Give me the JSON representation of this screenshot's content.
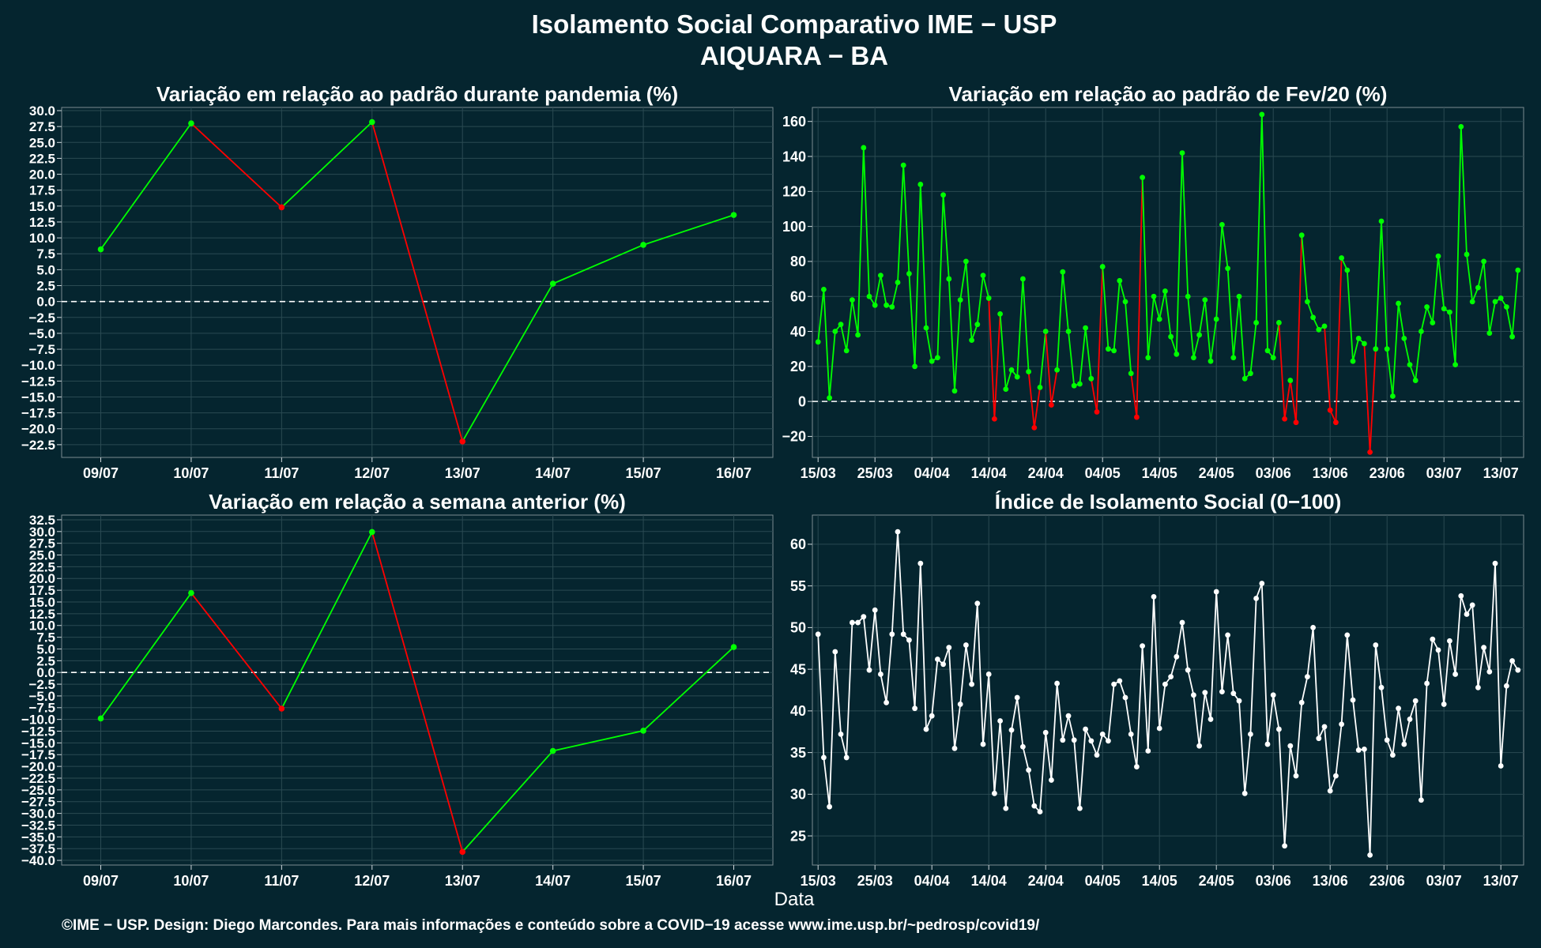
{
  "page": {
    "title": "Isolamento Social Comparativo IME − USP",
    "subtitle": "AIQUARA − BA",
    "xlabel": "Data",
    "footer": "©IME − USP. Design: Diego Marcondes. Para mais informações e conteúdo sobre a COVID−19 acesse www.ime.usp.br/~pedrosp/covid19/",
    "colors": {
      "background": "#05252f",
      "panel": "#05252f",
      "up": "#00ff00",
      "down": "#ff0000",
      "index": "#ffffff",
      "grid": "#2a4a52",
      "zero": "#ffffff"
    }
  },
  "chart_data": [
    {
      "id": "pandemia",
      "type": "line",
      "title": "Variação em relação ao padrão durante pandemia (%)",
      "categories": [
        "09/07",
        "10/07",
        "11/07",
        "12/07",
        "13/07",
        "14/07",
        "15/07",
        "16/07"
      ],
      "values": [
        8.2,
        28.0,
        14.8,
        28.2,
        -22.0,
        2.8,
        8.9,
        13.6
      ],
      "ylim": [
        -24.5,
        30.5
      ],
      "yticks": [
        "30.0",
        "27.5",
        "25.0",
        "22.5",
        "20.0",
        "17.5",
        "15.0",
        "12.5",
        "10.0",
        "7.5",
        "5.0",
        "2.5",
        "0.0",
        "−2.5",
        "−5.0",
        "−7.5",
        "−10.0",
        "−12.5",
        "−15.0",
        "−17.5",
        "−20.0",
        "−22.5"
      ],
      "ytick_values": [
        30.0,
        27.5,
        25.0,
        22.5,
        20.0,
        17.5,
        15.0,
        12.5,
        10.0,
        7.5,
        5.0,
        2.5,
        0.0,
        -2.5,
        -5.0,
        -7.5,
        -10.0,
        -12.5,
        -15.0,
        -17.5,
        -20.0,
        -22.5
      ],
      "zero_line": true,
      "color_rule": "segment red when decreasing, green when increasing"
    },
    {
      "id": "fev20",
      "type": "line",
      "title": "Variação em relação ao padrão de Fev/20 (%)",
      "x_start": "15/03",
      "x_end": "16/07",
      "xticks": [
        "15/03",
        "25/03",
        "04/04",
        "14/04",
        "24/04",
        "04/05",
        "14/05",
        "24/05",
        "03/06",
        "13/06",
        "23/06",
        "03/07",
        "13/07"
      ],
      "xtick_days": [
        0,
        10,
        20,
        30,
        40,
        50,
        60,
        70,
        80,
        90,
        100,
        110,
        120
      ],
      "values": [
        34,
        64,
        2,
        40,
        44,
        29,
        58,
        38,
        145,
        60,
        55,
        72,
        55,
        54,
        68,
        135,
        73,
        20,
        124,
        42,
        23,
        25,
        118,
        70,
        6,
        58,
        80,
        35,
        44,
        72,
        59,
        -10,
        50,
        7,
        18,
        14,
        70,
        17,
        -15,
        8,
        40,
        -2,
        18,
        74,
        40,
        9,
        10,
        42,
        13,
        -6,
        77,
        30,
        29,
        69,
        57,
        16,
        -9,
        128,
        25,
        60,
        47,
        63,
        37,
        27,
        142,
        60,
        25,
        38,
        58,
        23,
        47,
        101,
        76,
        25,
        60,
        13,
        16,
        45,
        164,
        29,
        25,
        45,
        -10,
        12,
        -12,
        95,
        57,
        48,
        41,
        43,
        -5,
        -12,
        82,
        75,
        23,
        36,
        33,
        -29,
        30,
        103,
        30,
        3,
        56,
        36,
        21,
        12,
        40,
        54,
        45,
        83,
        53,
        51,
        21,
        157,
        84,
        57,
        65,
        80,
        39,
        57,
        59,
        54,
        37,
        75
      ],
      "ylim": [
        -32,
        168
      ],
      "yticks": [
        "160",
        "140",
        "120",
        "100",
        "80",
        "60",
        "40",
        "20",
        "0",
        "−20"
      ],
      "ytick_values": [
        160,
        140,
        120,
        100,
        80,
        60,
        40,
        20,
        0,
        -20
      ],
      "zero_line": true,
      "color_rule": "points/segments red when value below 0, green otherwise"
    },
    {
      "id": "semana",
      "type": "line",
      "title": "Variação em relação a semana anterior (%)",
      "categories": [
        "09/07",
        "10/07",
        "11/07",
        "12/07",
        "13/07",
        "14/07",
        "15/07",
        "16/07"
      ],
      "values": [
        -9.8,
        16.9,
        -7.7,
        29.9,
        -38.2,
        -16.7,
        -12.4,
        5.4
      ],
      "ylim": [
        -41.0,
        33.5
      ],
      "yticks": [
        "32.5",
        "30.0",
        "27.5",
        "25.0",
        "22.5",
        "20.0",
        "17.5",
        "15.0",
        "12.5",
        "10.0",
        "7.5",
        "5.0",
        "2.5",
        "0.0",
        "−2.5",
        "−5.0",
        "−7.5",
        "−10.0",
        "−12.5",
        "−15.0",
        "−17.5",
        "−20.0",
        "−22.5",
        "−25.0",
        "−27.5",
        "−30.0",
        "−32.5",
        "−35.0",
        "−37.5",
        "−40.0"
      ],
      "ytick_values": [
        32.5,
        30.0,
        27.5,
        25.0,
        22.5,
        20.0,
        17.5,
        15.0,
        12.5,
        10.0,
        7.5,
        5.0,
        2.5,
        0.0,
        -2.5,
        -5.0,
        -7.5,
        -10.0,
        -12.5,
        -15.0,
        -17.5,
        -20.0,
        -22.5,
        -25.0,
        -27.5,
        -30.0,
        -32.5,
        -35.0,
        -37.5,
        -40.0
      ],
      "zero_line": true,
      "color_rule": "segment red when decreasing, green when increasing"
    },
    {
      "id": "indice",
      "type": "line",
      "title": "Índice de Isolamento Social (0−100)",
      "x_start": "15/03",
      "x_end": "16/07",
      "xticks": [
        "15/03",
        "25/03",
        "04/04",
        "14/04",
        "24/04",
        "04/05",
        "14/05",
        "24/05",
        "03/06",
        "13/06",
        "23/06",
        "03/07",
        "13/07"
      ],
      "xtick_days": [
        0,
        10,
        20,
        30,
        40,
        50,
        60,
        70,
        80,
        90,
        100,
        110,
        120
      ],
      "values": [
        49.2,
        34.4,
        28.5,
        47.1,
        37.2,
        34.4,
        50.6,
        50.6,
        51.3,
        44.9,
        52.1,
        44.4,
        41.0,
        49.2,
        61.5,
        49.2,
        48.5,
        40.3,
        57.7,
        37.8,
        39.4,
        46.2,
        45.6,
        47.6,
        35.5,
        40.8,
        47.9,
        43.2,
        52.9,
        36.0,
        44.4,
        30.1,
        38.8,
        28.3,
        37.7,
        41.6,
        35.7,
        32.9,
        28.6,
        27.9,
        37.4,
        31.7,
        43.3,
        36.5,
        39.4,
        36.5,
        28.3,
        37.8,
        36.4,
        34.7,
        37.2,
        36.4,
        43.2,
        43.6,
        41.6,
        37.2,
        33.3,
        47.8,
        35.2,
        53.7,
        37.9,
        43.2,
        44.1,
        46.5,
        50.6,
        44.9,
        41.9,
        35.8,
        42.2,
        39.0,
        54.3,
        42.3,
        49.1,
        42.1,
        41.2,
        30.1,
        37.2,
        53.5,
        55.3,
        36.0,
        41.9,
        37.8,
        23.8,
        35.8,
        32.2,
        41.0,
        44.1,
        50.0,
        36.7,
        38.1,
        30.4,
        32.2,
        38.4,
        49.1,
        41.3,
        35.3,
        35.4,
        22.7,
        47.9,
        42.8,
        36.5,
        34.7,
        40.3,
        36.0,
        39.0,
        41.2,
        29.3,
        43.3,
        48.6,
        47.3,
        40.8,
        48.4,
        44.4,
        53.8,
        51.6,
        52.7,
        42.8,
        47.6,
        44.7,
        57.7,
        33.4,
        43.0,
        46.0,
        44.9
      ],
      "ylim": [
        21.5,
        63.5
      ],
      "yticks": [
        "60",
        "55",
        "50",
        "45",
        "40",
        "35",
        "30",
        "25"
      ],
      "ytick_values": [
        60,
        55,
        50,
        45,
        40,
        35,
        30,
        25
      ],
      "zero_line": false,
      "color_rule": "white line and points"
    }
  ]
}
